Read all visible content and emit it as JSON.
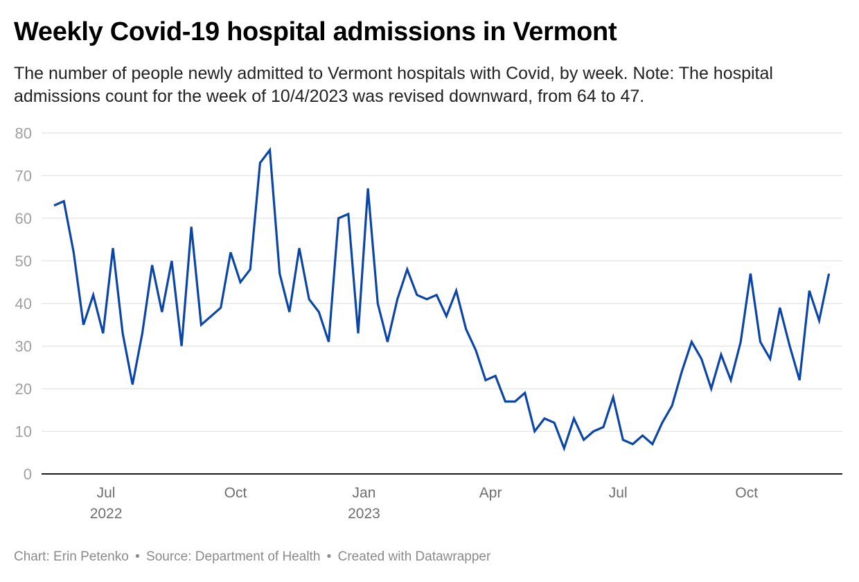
{
  "header": {
    "title": "Weekly Covid-19 hospital admissions in Vermont",
    "subtitle": "The number of people newly admitted to Vermont hospitals with Covid, by week. Note: The hospital admissions count for the week of 10/4/2023 was revised downward, from 64 to 47."
  },
  "footer": {
    "chart_credit": "Chart: Erin Petenko",
    "source": "Source: Department of Health",
    "created_with": "Created with Datawrapper",
    "separator": "•"
  },
  "colors": {
    "line": "#0b45a8",
    "grid": "#e2e2e2",
    "axis": "#1a1a1a",
    "tick_label_y": "#a0a0a0",
    "tick_label_x": "#6e6e6e"
  },
  "chart_data": {
    "type": "line",
    "title": "Weekly Covid-19 hospital admissions in Vermont",
    "xlabel": "",
    "ylabel": "",
    "ylim": [
      0,
      80
    ],
    "y_ticks": [
      0,
      10,
      20,
      30,
      40,
      50,
      60,
      70,
      80
    ],
    "grid": true,
    "legend": "none",
    "x_start_week_index_offset_to_jul_2022": 5.3,
    "x_ticks": [
      {
        "label": "Jul",
        "sublabel": "2022",
        "week_pos": 5.3
      },
      {
        "label": "Oct",
        "sublabel": "",
        "week_pos": 18.5
      },
      {
        "label": "Jan",
        "sublabel": "2023",
        "week_pos": 31.6
      },
      {
        "label": "Apr",
        "sublabel": "",
        "week_pos": 44.5
      },
      {
        "label": "Jul",
        "sublabel": "",
        "week_pos": 57.5
      },
      {
        "label": "Oct",
        "sublabel": "",
        "week_pos": 70.6
      }
    ],
    "series": [
      {
        "name": "Weekly hospital admissions",
        "values": [
          63,
          64,
          52,
          35,
          42,
          33,
          53,
          33,
          21,
          33,
          49,
          38,
          50,
          30,
          58,
          35,
          37,
          39,
          52,
          45,
          48,
          73,
          76,
          47,
          38,
          53,
          41,
          38,
          31,
          60,
          61,
          33,
          67,
          40,
          31,
          41,
          48,
          42,
          41,
          42,
          37,
          43,
          34,
          29,
          22,
          23,
          17,
          17,
          19,
          10,
          13,
          12,
          6,
          13,
          8,
          10,
          11,
          18,
          8,
          7,
          9,
          7,
          12,
          16,
          24,
          31,
          27,
          20,
          28,
          22,
          31,
          47,
          31,
          27,
          39,
          30,
          22,
          43,
          36,
          47
        ]
      }
    ]
  }
}
